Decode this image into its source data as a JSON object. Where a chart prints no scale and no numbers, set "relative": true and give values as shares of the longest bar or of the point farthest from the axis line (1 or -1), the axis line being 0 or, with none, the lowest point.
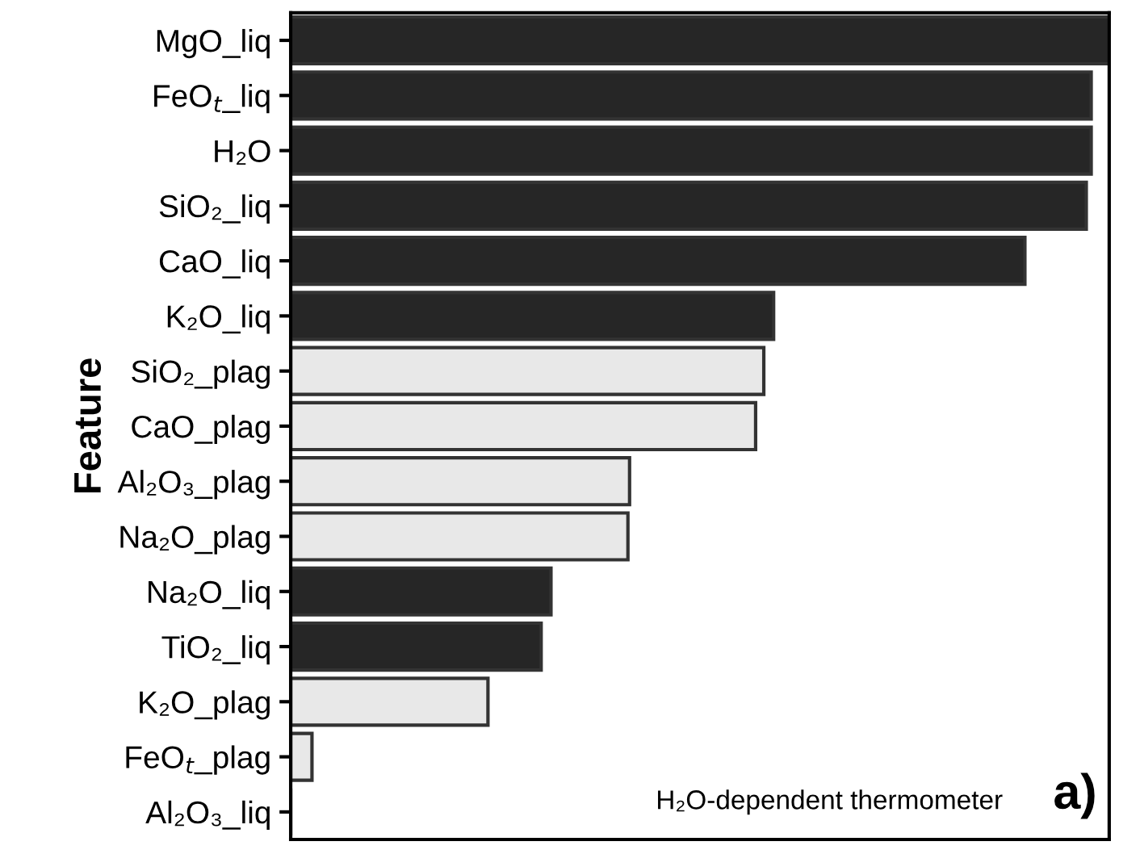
{
  "chart_data": {
    "type": "bar",
    "orientation": "horizontal",
    "relative": true,
    "ylabel": "Feature",
    "categories": [
      "MgO_liq",
      "FeO$_{t}$_liq",
      "H₂O",
      "SiO₂_liq",
      "CaO_liq",
      "K₂O_liq",
      "SiO₂_plag",
      "CaO_plag",
      "Al₂O₃_plag",
      "Na₂O_plag",
      "Na₂O_liq",
      "TiO₂_liq",
      "K₂O_plag",
      "FeO$_{t}$_plag",
      "Al₂O₃_liq"
    ],
    "values": [
      1.0,
      0.978,
      0.978,
      0.972,
      0.897,
      0.59,
      0.578,
      0.568,
      0.414,
      0.412,
      0.318,
      0.306,
      0.241,
      0.026,
      0.0
    ],
    "colors": [
      "#262626",
      "#262626",
      "#262626",
      "#262626",
      "#262626",
      "#262626",
      "#e8e8e8",
      "#e8e8e8",
      "#e8e8e8",
      "#e8e8e8",
      "#262626",
      "#262626",
      "#e8e8e8",
      "#e8e8e8",
      "#262626"
    ],
    "annotations": [
      "H₂O-dependent thermometer",
      "a)"
    ],
    "grid": false,
    "legend": false
  }
}
